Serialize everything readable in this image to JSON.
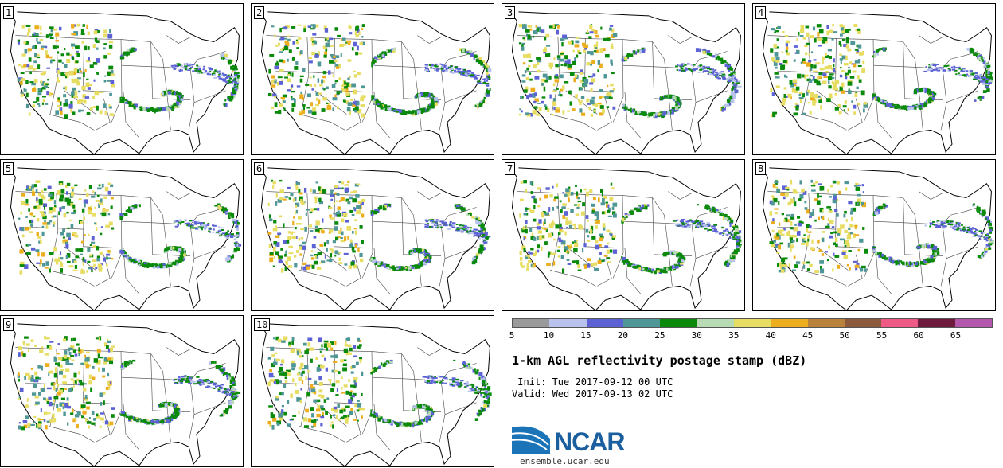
{
  "panels": [
    {
      "label": "1"
    },
    {
      "label": "2"
    },
    {
      "label": "3"
    },
    {
      "label": "4"
    },
    {
      "label": "5"
    },
    {
      "label": "6"
    },
    {
      "label": "7"
    },
    {
      "label": "8"
    },
    {
      "label": "9"
    },
    {
      "label": "10"
    }
  ],
  "colorbar": {
    "colors": [
      "#9a9a9a",
      "#b8c2ec",
      "#5c62d4",
      "#4f9696",
      "#0a8a0a",
      "#b7dbb3",
      "#e6dd62",
      "#ecae1f",
      "#b8823c",
      "#8b5a3c",
      "#ee5a85",
      "#6e1a3c",
      "#b257ac"
    ],
    "tick_labels": [
      "5",
      "10",
      "15",
      "20",
      "25",
      "30",
      "35",
      "40",
      "45",
      "50",
      "55",
      "60",
      "65"
    ]
  },
  "title": "1-km AGL reflectivity postage stamp (dBZ)",
  "init_line": " Init: Tue 2017-09-12 00 UTC",
  "valid_line": "Valid: Wed 2017-09-13 02 UTC",
  "logo_text": "NCAR",
  "url": "ensemble.ucar.edu"
}
